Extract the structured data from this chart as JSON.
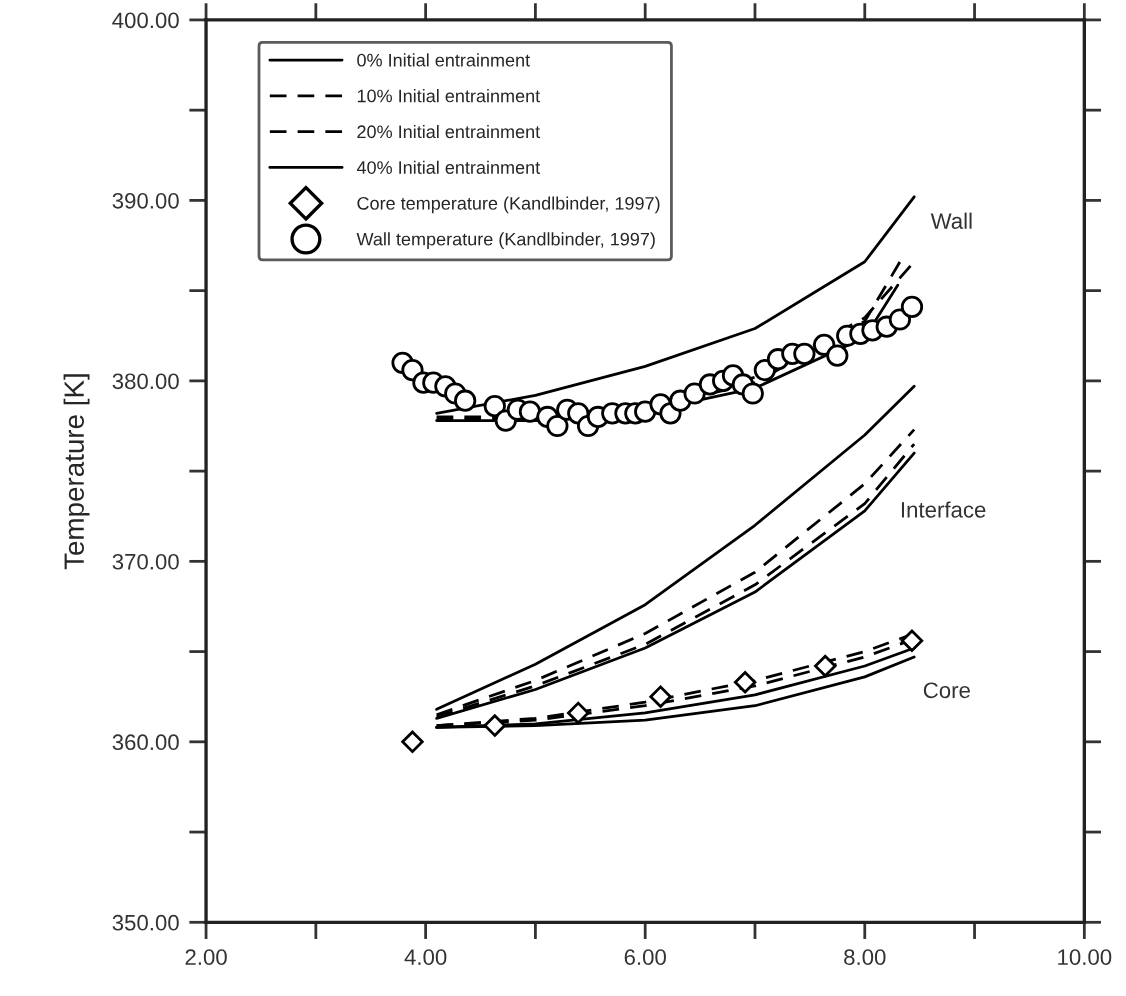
{
  "chart_data": {
    "type": "line",
    "ylabel": "Temperature [K]",
    "xlim": [
      2,
      10
    ],
    "ylim": [
      350,
      400
    ],
    "xticks": [
      {
        "value": 2,
        "label": "2.00"
      },
      {
        "value": 3,
        "label": null
      },
      {
        "value": 4,
        "label": "4.00"
      },
      {
        "value": 5,
        "label": null
      },
      {
        "value": 6,
        "label": "6.00"
      },
      {
        "value": 7,
        "label": null
      },
      {
        "value": 8,
        "label": "8.00"
      },
      {
        "value": 9,
        "label": null
      },
      {
        "value": 10,
        "label": "10.00"
      }
    ],
    "yticks": [
      {
        "value": 350,
        "label": "350.00"
      },
      {
        "value": 355,
        "label": null
      },
      {
        "value": 360,
        "label": "360.00"
      },
      {
        "value": 365,
        "label": null
      },
      {
        "value": 370,
        "label": "370.00"
      },
      {
        "value": 375,
        "label": null
      },
      {
        "value": 380,
        "label": "380.00"
      },
      {
        "value": 385,
        "label": null
      },
      {
        "value": 390,
        "label": "390.00"
      },
      {
        "value": 395,
        "label": null
      },
      {
        "value": 400,
        "label": "400.00"
      }
    ],
    "grid": false,
    "legend": "top left",
    "series": [
      {
        "name": "0% Initial entrainment",
        "color": "#000000",
        "line_style": "solid",
        "marker": "none",
        "x": [
          4.1,
          5,
          6,
          7,
          8,
          8.45
        ],
        "values": [
          378.2,
          379.2,
          380.8,
          382.9,
          386.6,
          390.2
        ]
      },
      {
        "name": "10% Initial entrainment",
        "color": "#000000",
        "line_style": "dashed",
        "marker": "none",
        "x": [
          4.1,
          5,
          6,
          7,
          8,
          8.45
        ],
        "values": [
          378.0,
          378.0,
          378.6,
          380.2,
          383.5,
          386.6
        ]
      },
      {
        "name": "20% Initial entrainment",
        "color": "#000000",
        "line_style": "dashed",
        "marker": "none",
        "x": [
          4.1,
          5,
          6,
          7,
          8,
          8.35
        ],
        "values": [
          377.9,
          377.9,
          378.4,
          379.9,
          383.3,
          386.9
        ]
      },
      {
        "name": "40% Initial entrainment",
        "color": "#000000",
        "line_style": "solid",
        "marker": "none",
        "x": [
          4.1,
          5,
          6,
          7,
          8,
          8.3
        ],
        "values": [
          377.8,
          377.8,
          378.3,
          379.6,
          382.4,
          385.3
        ]
      },
      {
        "color": "#000000",
        "line_style": "solid",
        "marker": "none",
        "x": [
          4.1,
          5,
          6,
          7,
          8,
          8.45
        ],
        "values": [
          361.8,
          364.3,
          367.6,
          372.0,
          377.0,
          379.7
        ]
      },
      {
        "color": "#000000",
        "line_style": "dashed",
        "marker": "none",
        "x": [
          4.1,
          5,
          6,
          7,
          8,
          8.45
        ],
        "values": [
          361.4,
          363.1,
          365.4,
          368.7,
          373.2,
          376.5
        ]
      },
      {
        "color": "#000000",
        "line_style": "dashed",
        "marker": "none",
        "x": [
          4.1,
          5,
          6,
          7,
          8,
          8.45
        ],
        "values": [
          361.5,
          363.4,
          366.0,
          369.4,
          374.3,
          377.3
        ]
      },
      {
        "color": "#000000",
        "line_style": "solid",
        "marker": "none",
        "x": [
          4.1,
          5,
          6,
          7,
          8,
          8.45
        ],
        "values": [
          361.3,
          362.9,
          365.2,
          368.3,
          372.8,
          376.0
        ]
      },
      {
        "color": "#000000",
        "line_style": "solid",
        "marker": "none",
        "x": [
          4.1,
          5,
          6,
          7,
          8,
          8.45
        ],
        "values": [
          360.8,
          360.9,
          361.2,
          362.0,
          363.6,
          364.7
        ]
      },
      {
        "color": "#000000",
        "line_style": "dashed",
        "marker": "none",
        "x": [
          4.1,
          5,
          6,
          7,
          8,
          8.45
        ],
        "values": [
          360.9,
          361.3,
          362.2,
          363.4,
          365.0,
          366.0
        ]
      },
      {
        "color": "#000000",
        "line_style": "dashed",
        "marker": "none",
        "x": [
          4.1,
          5,
          6,
          7,
          8,
          8.45
        ],
        "values": [
          360.9,
          361.2,
          362.0,
          363.1,
          364.7,
          365.7
        ]
      },
      {
        "color": "#000000",
        "line_style": "solid",
        "marker": "none",
        "x": [
          4.1,
          5,
          6,
          7,
          8,
          8.45
        ],
        "values": [
          360.8,
          361.0,
          361.6,
          362.6,
          364.2,
          365.2
        ]
      },
      {
        "name": "Core temperature (Kandlbinder, 1997)",
        "type": "scatter",
        "color": "#000000",
        "marker": "diamond",
        "x": [
          3.88,
          4.63,
          5.39,
          6.14,
          6.91,
          7.64,
          8.43
        ],
        "values": [
          360.0,
          360.9,
          361.6,
          362.5,
          363.3,
          364.2,
          365.6
        ]
      },
      {
        "name": "Wall temperature (Kandlbinder, 1997)",
        "type": "scatter",
        "color": "#000000",
        "marker": "circle",
        "x": [
          3.79,
          3.88,
          3.98,
          4.07,
          4.18,
          4.27,
          4.36,
          4.63,
          4.73,
          4.84,
          4.95,
          5.11,
          5.2,
          5.29,
          5.39,
          5.48,
          5.57,
          5.7,
          5.82,
          5.91,
          6.0,
          6.14,
          6.23,
          6.32,
          6.45,
          6.59,
          6.71,
          6.8,
          6.89,
          6.98,
          7.09,
          7.21,
          7.34,
          7.45,
          7.63,
          7.75,
          7.84,
          7.96,
          8.07,
          8.2,
          8.32,
          8.43
        ],
        "values": [
          381.0,
          380.6,
          379.9,
          379.9,
          379.7,
          379.3,
          378.9,
          378.6,
          377.8,
          378.4,
          378.3,
          378.0,
          377.5,
          378.4,
          378.2,
          377.5,
          378.0,
          378.2,
          378.2,
          378.2,
          378.3,
          378.7,
          378.2,
          378.9,
          379.3,
          379.8,
          380.0,
          380.3,
          379.8,
          379.3,
          380.6,
          381.2,
          381.5,
          381.5,
          382.0,
          381.4,
          382.5,
          382.6,
          382.8,
          383.0,
          383.4,
          384.1
        ]
      }
    ],
    "annotations": [
      "Wall",
      "Interface",
      "Core"
    ]
  }
}
